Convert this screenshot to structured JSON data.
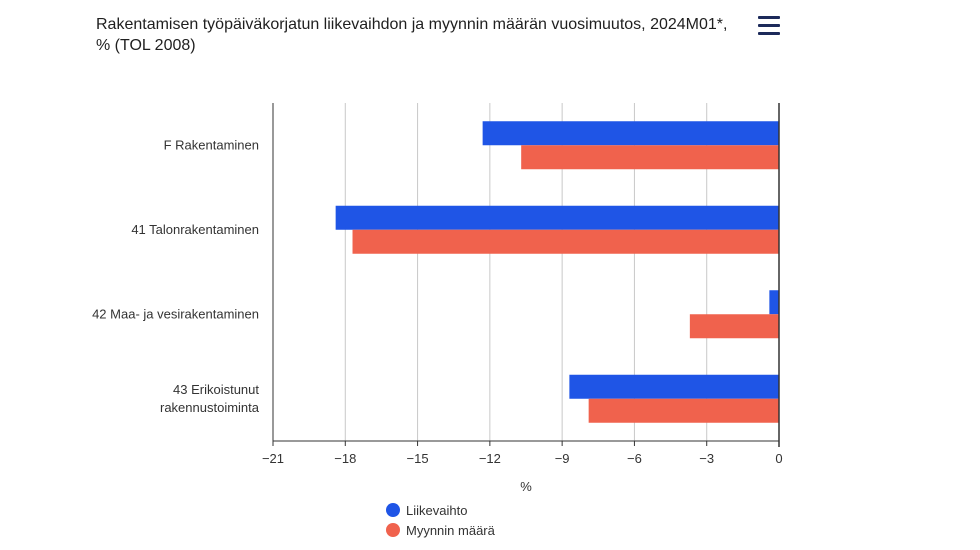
{
  "title_line1": "Rakentamisen työpäiväkorjatun liikevaihdon ja myynnin määrän vuosimuutos, 2024M01*,",
  "title_line2": "% (TOL 2008)",
  "menu_icon": "hamburger-menu-icon",
  "colors": {
    "liikevaihto": "#1f55e6",
    "myynnin_maara": "#f0624d",
    "grid": "#c8c8c8",
    "axis": "#333333"
  },
  "chart_data": {
    "type": "bar",
    "orientation": "horizontal",
    "categories": [
      [
        "F Rakentaminen"
      ],
      [
        "41 Talonrakentaminen"
      ],
      [
        "42 Maa- ja vesirakentaminen"
      ],
      [
        "43 Erikoistunut",
        "rakennustoiminta"
      ]
    ],
    "series": [
      {
        "name": "Liikevaihto",
        "values": [
          -12.3,
          -18.4,
          -0.4,
          -8.7
        ]
      },
      {
        "name": "Myynnin määrä",
        "values": [
          -10.7,
          -17.7,
          -3.7,
          -7.9
        ]
      }
    ],
    "xlim": [
      -21,
      0
    ],
    "xticks": [
      -21,
      -18,
      -15,
      -12,
      -9,
      -6,
      -3,
      0
    ],
    "xtick_labels": [
      "−21",
      "−18",
      "−15",
      "−12",
      "−9",
      "−6",
      "−3",
      "0"
    ],
    "xlabel": "%",
    "grid": true,
    "legend_position": "bottom"
  }
}
